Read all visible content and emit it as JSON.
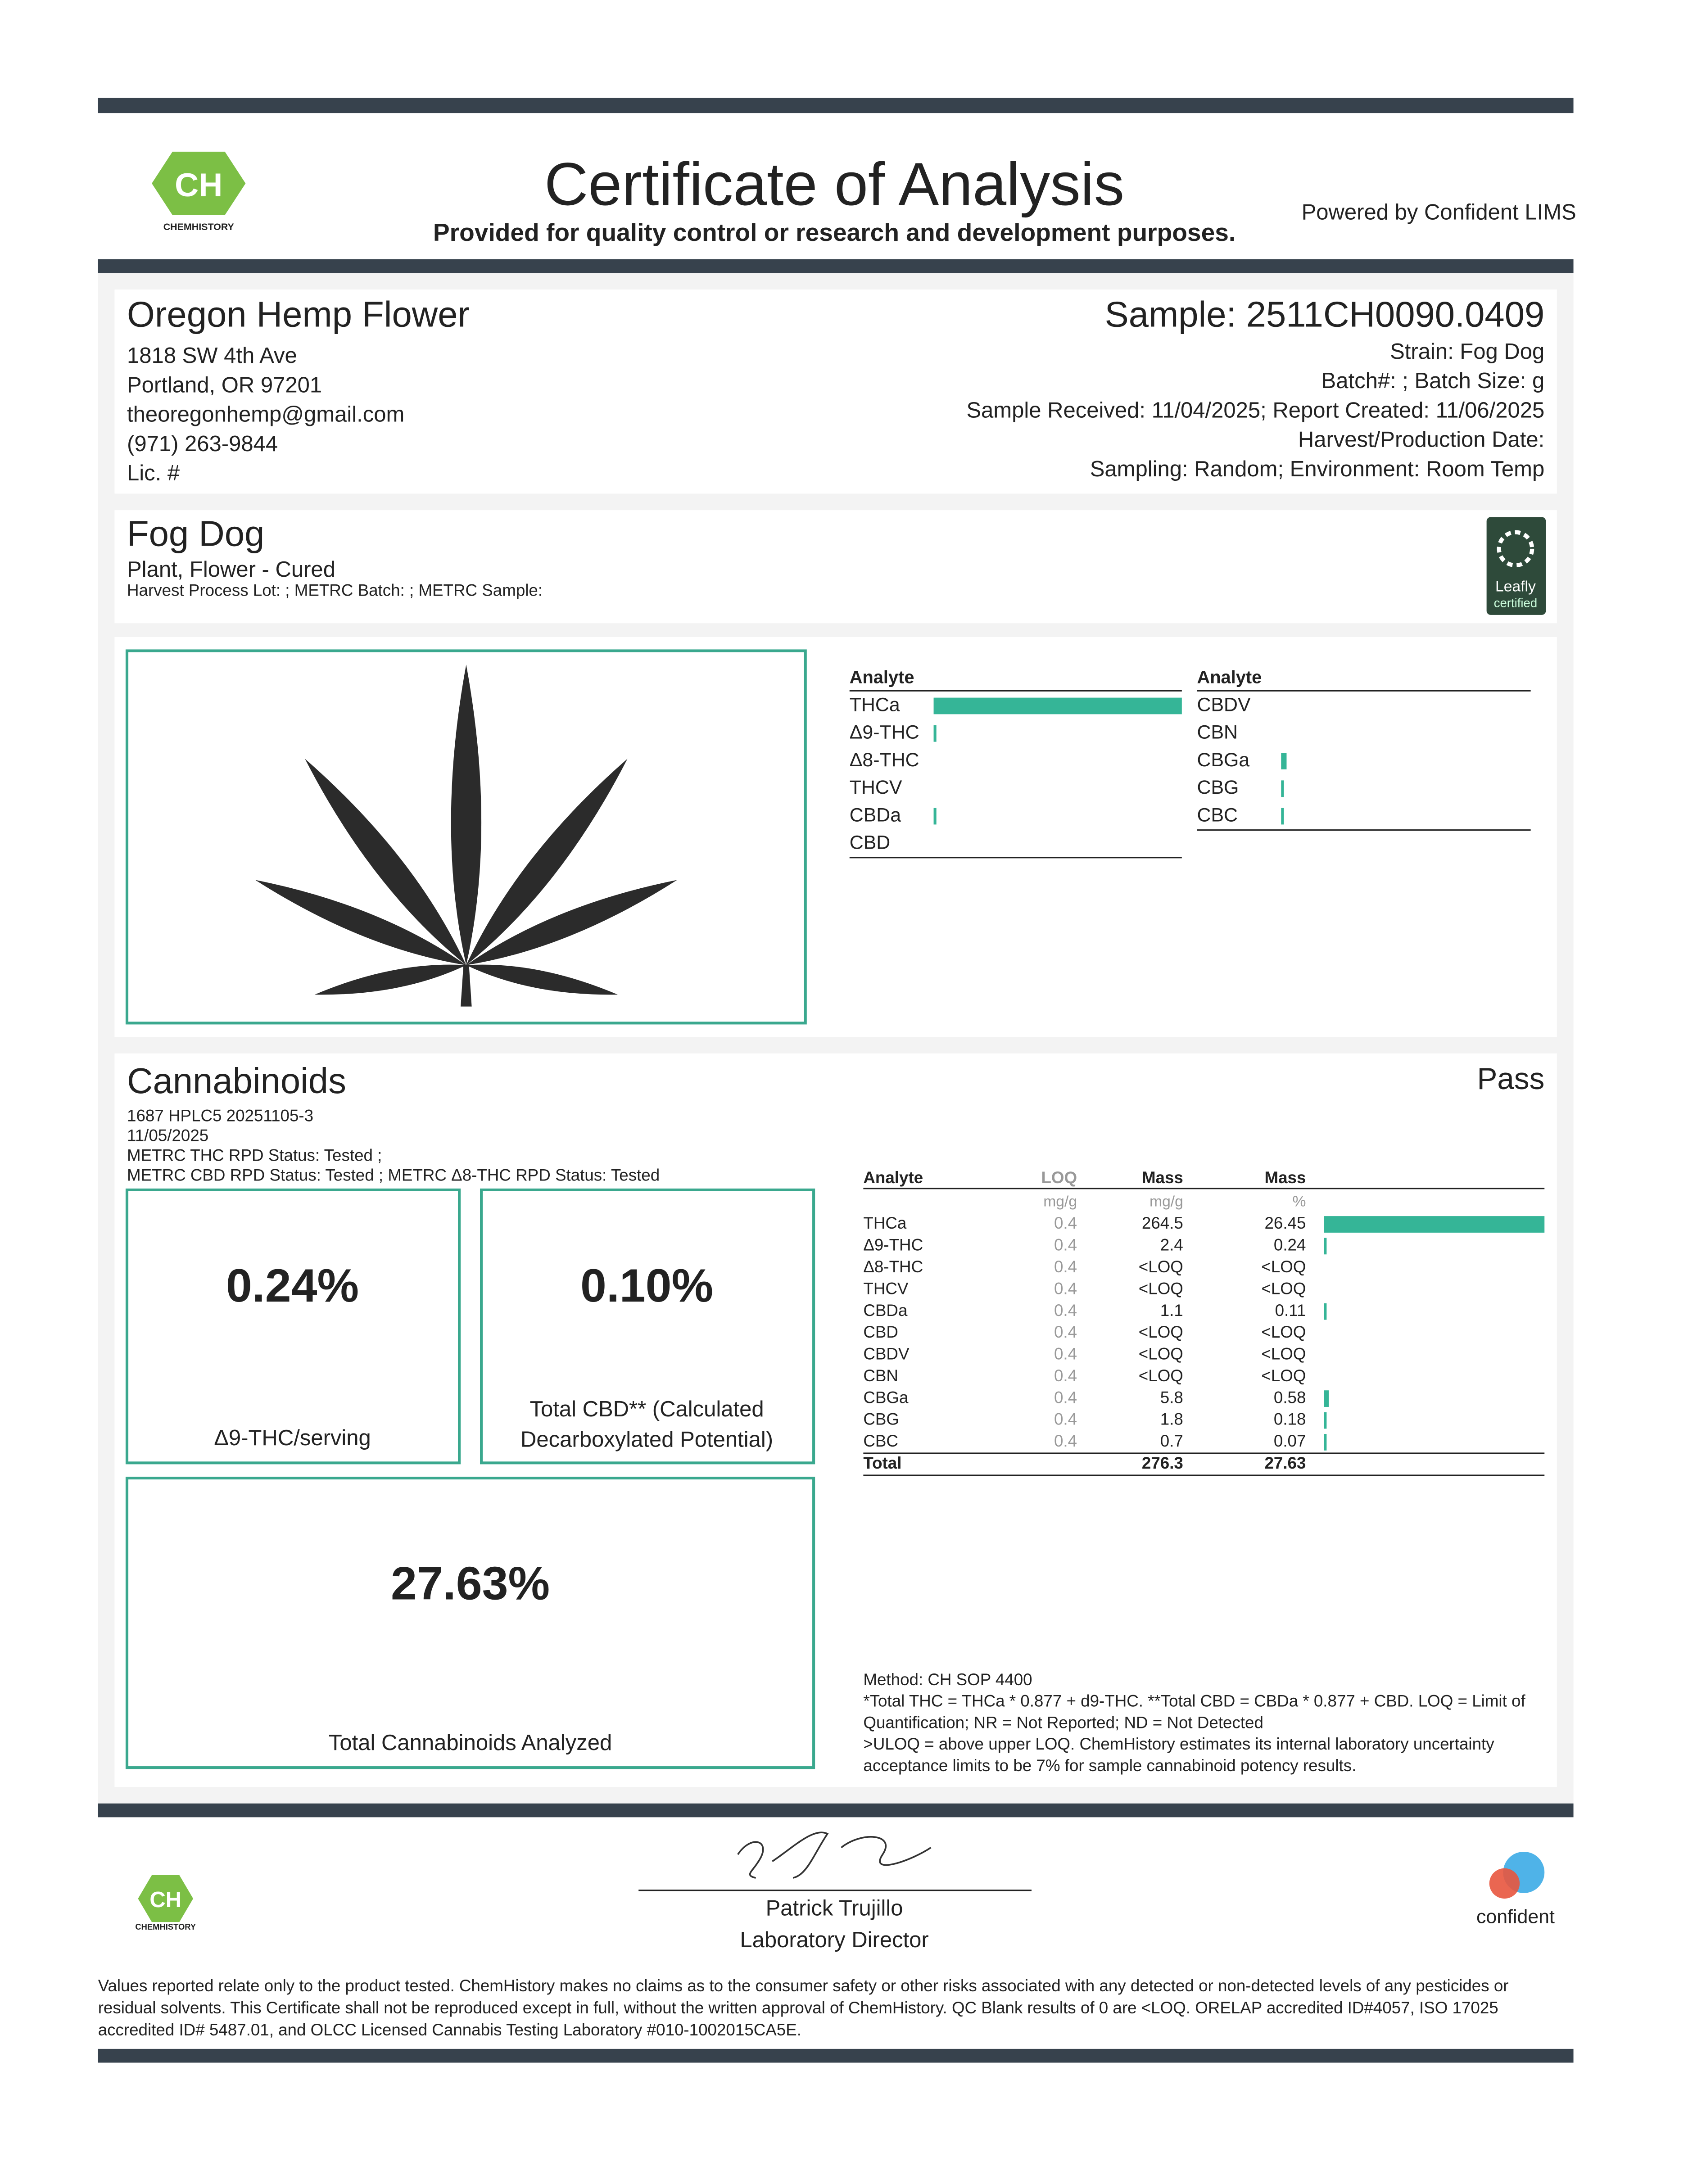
{
  "header": {
    "title": "Certificate of Analysis",
    "subtitle": "Provided for quality control or research and development purposes.",
    "powered_by": "Powered by Confident LIMS",
    "logo_text": "CH",
    "logo_name": "CHEMHISTORY"
  },
  "client": {
    "name": "Oregon Hemp Flower",
    "lines": [
      "1818 SW 4th Ave",
      "Portland, OR 97201",
      "theoregonhemp@gmail.com",
      "(971) 263-9844",
      "Lic. #"
    ]
  },
  "sample": {
    "id": "Sample: 2511CH0090.0409",
    "lines": [
      "Strain: Fog Dog",
      "Batch#: ; Batch Size:  g",
      "Sample Received: 11/04/2025; Report Created: 11/06/2025",
      "Harvest/Production Date: ",
      "Sampling: Random; Environment: Room Temp"
    ]
  },
  "product": {
    "name": "Fog Dog",
    "type": "Plant, Flower - Cured",
    "lot": "Harvest Process Lot: ; METRC Batch: ; METRC Sample:",
    "badge": [
      "Leafly",
      "certified"
    ]
  },
  "cannabinoids": {
    "title": "Cannabinoids",
    "status": "Pass",
    "meta": [
      "1687 HPLC5 20251105-3",
      "11/05/2025",
      "METRC THC RPD Status: Tested ;",
      "METRC CBD RPD Status: Tested ; METRC Δ8-THC RPD Status: Tested"
    ],
    "summary": [
      {
        "value": "0.24%",
        "label": [
          "Δ9-THC/serving"
        ]
      },
      {
        "value": "0.10%",
        "label": [
          "Total CBD** (Calculated",
          "Decarboxylated Potential)"
        ]
      },
      {
        "value": "27.63%",
        "label": [
          "Total Cannabinoids Analyzed"
        ]
      }
    ],
    "table": {
      "headers": [
        "Analyte",
        "LOQ",
        "Mass",
        "Mass"
      ],
      "units": [
        "mg/g",
        "mg/g",
        "%"
      ],
      "rows": [
        [
          "THCa",
          0.4,
          264.5,
          26.45
        ],
        [
          "Δ9-THC",
          0.4,
          2.4,
          0.24
        ],
        [
          "Δ8-THC",
          0.4,
          "<LOQ",
          "<LOQ"
        ],
        [
          "THCV",
          0.4,
          "<LOQ",
          "<LOQ"
        ],
        [
          "CBDa",
          0.4,
          1.1,
          0.11
        ],
        [
          "CBD",
          0.4,
          "<LOQ",
          "<LOQ"
        ],
        [
          "CBDV",
          0.4,
          "<LOQ",
          "<LOQ"
        ],
        [
          "CBN",
          0.4,
          "<LOQ",
          "<LOQ"
        ],
        [
          "CBGa",
          0.4,
          5.8,
          0.58
        ],
        [
          "CBG",
          0.4,
          1.8,
          0.18
        ],
        [
          "CBC",
          0.4,
          0.7,
          0.07
        ]
      ],
      "total": [
        "Total",
        276.3,
        27.63
      ]
    },
    "notes": [
      "Method: CH SOP 4400",
      "*Total THC = THCa * 0.877 + d9-THC. **Total CBD = CBDa * 0.877 + CBD. LOQ = Limit of",
      "Quantification; NR = Not Reported; ND = Not Detected",
      ">ULOQ = above upper LOQ. ChemHistory estimates its internal laboratory uncertainty",
      "acceptance limits to be 7% for sample cannabinoid potency results."
    ]
  },
  "signature": {
    "name": "Patrick Trujillo",
    "title": "Laboratory Director",
    "partner": "confident"
  },
  "disclaimer": [
    "Values reported relate only to the product tested. ChemHistory makes no claims as to the consumer safety or other risks associated with any detected or non-detected levels of any pesticides or",
    "residual solvents. This Certificate shall not be reproduced except in full, without the written approval of ChemHistory. QC Blank results of 0 are <LOQ.  ORELAP accredited ID#4057, ISO 17025",
    "accredited ID# 5487.01, and OLCC Licensed Cannabis Testing Laboratory #010-1002015CA5E."
  ]
}
